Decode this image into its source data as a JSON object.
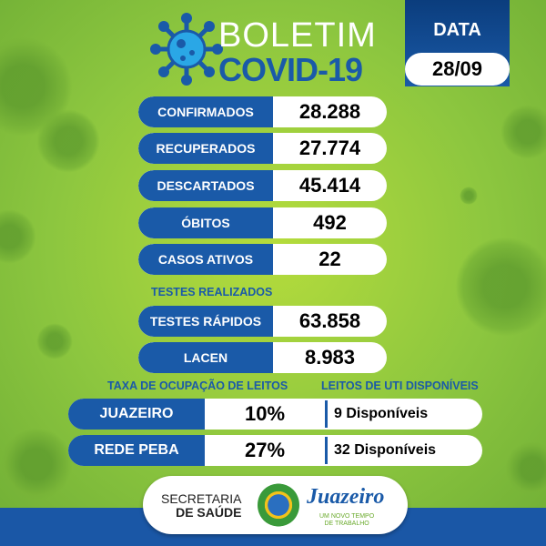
{
  "header": {
    "title_line1": "BOLETIM",
    "title_line2": "COVID-19",
    "date_label": "DATA",
    "date_value": "28/09"
  },
  "stats": [
    {
      "label": "CONFIRMADOS",
      "value": "28.288"
    },
    {
      "label": "RECUPERADOS",
      "value": "27.774"
    },
    {
      "label": "DESCARTADOS",
      "value": "45.414"
    },
    {
      "label": "ÓBITOS",
      "value": "492"
    },
    {
      "label": "CASOS ATIVOS",
      "value": "22"
    }
  ],
  "tests": {
    "heading": "TESTES REALIZADOS",
    "items": [
      {
        "label": "TESTES RÁPIDOS",
        "value": "63.858"
      },
      {
        "label": "LACEN",
        "value": "8.983"
      }
    ]
  },
  "beds": {
    "occupancy_heading": "TAXA DE OCUPAÇÃO DE LEITOS",
    "uti_heading": "LEITOS DE UTI DISPONÍVEIS",
    "rows": [
      {
        "label": "JUAZEIRO",
        "occupancy": "10%",
        "uti": "9 Disponíveis"
      },
      {
        "label": "REDE PEBA",
        "occupancy": "27%",
        "uti": "32 Disponíveis"
      }
    ]
  },
  "footer": {
    "secretaria_line1": "SECRETARIA",
    "secretaria_line2": "DE SAÚDE",
    "prefeitura": "Juazeiro",
    "prefeitura_tagline_1": "UM NOVO TEMPO",
    "prefeitura_tagline_2": "DE TRABALHO"
  },
  "colors": {
    "brand_blue": "#1a5aa8",
    "background_green": "#8cc63f"
  }
}
